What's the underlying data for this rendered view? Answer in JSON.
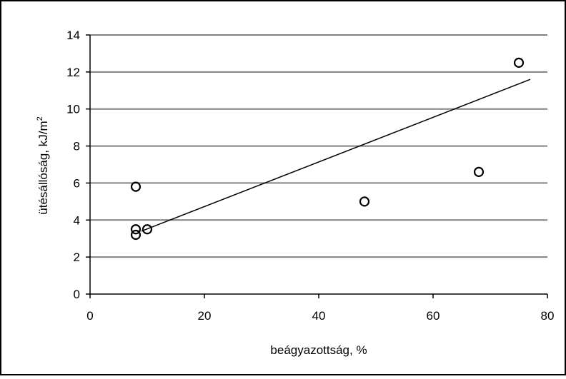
{
  "chart_data": {
    "type": "scatter",
    "title": "",
    "xlabel": "beágyazottság, %",
    "ylabel_main": "ütésállóság, kJ/m",
    "ylabel_sup": "2",
    "xlim": [
      0,
      80
    ],
    "ylim": [
      0,
      14
    ],
    "x_ticks": [
      0,
      20,
      40,
      60,
      80
    ],
    "y_ticks": [
      0,
      2,
      4,
      6,
      8,
      10,
      12,
      14
    ],
    "x_tick_labels": [
      "0",
      "20",
      "40",
      "60",
      "80"
    ],
    "y_tick_labels": [
      "0",
      "2",
      "4",
      "6",
      "8",
      "10",
      "12",
      "14"
    ],
    "grid": "horizontal",
    "legend": "none",
    "series": [
      {
        "points": [
          {
            "x": 8,
            "y": 5.8
          },
          {
            "x": 8,
            "y": 3.5
          },
          {
            "x": 8,
            "y": 3.2
          },
          {
            "x": 10,
            "y": 3.5
          },
          {
            "x": 48,
            "y": 5.0
          },
          {
            "x": 68,
            "y": 6.6
          },
          {
            "x": 75,
            "y": 12.5
          }
        ],
        "marker": "open-circle"
      }
    ],
    "trendline": {
      "type": "linear",
      "x_start": 9,
      "y_start": 3.4,
      "x_end": 77,
      "y_end": 11.6
    }
  },
  "colors": {
    "gridline": "#808080",
    "axis": "#000000",
    "marker": "#000000",
    "frame": "#000000"
  }
}
